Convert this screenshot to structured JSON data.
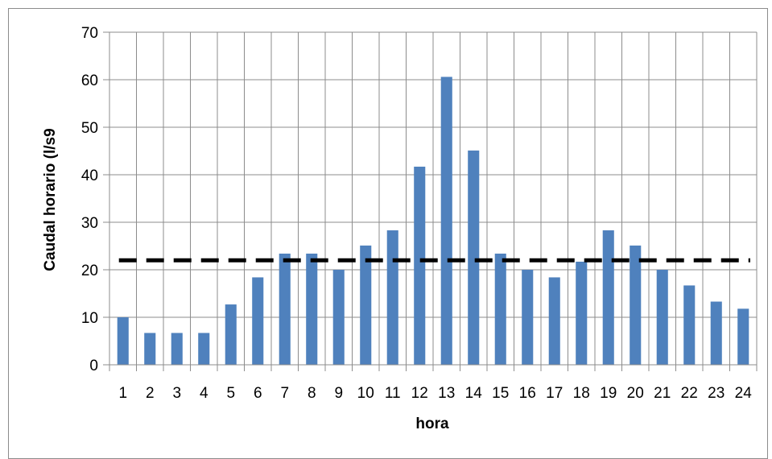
{
  "chart_data": {
    "type": "bar",
    "title": "",
    "xlabel": "hora",
    "ylabel": "Caudal horario (l/s9",
    "categories": [
      "1",
      "2",
      "3",
      "4",
      "5",
      "6",
      "7",
      "8",
      "9",
      "10",
      "11",
      "12",
      "13",
      "14",
      "15",
      "16",
      "17",
      "18",
      "19",
      "20",
      "21",
      "22",
      "23",
      "24"
    ],
    "series": [
      {
        "values": [
          10,
          6.7,
          6.7,
          6.7,
          12.7,
          18.4,
          23.4,
          23.4,
          20,
          25.1,
          28.3,
          41.7,
          60.6,
          45.1,
          23.4,
          20,
          18.4,
          21.7,
          28.3,
          25.1,
          20,
          16.7,
          13.3,
          11.8
        ],
        "color": "#4f81bd"
      }
    ],
    "reference_line": {
      "value": 22,
      "style": "dashed",
      "color": "#000000"
    },
    "ylim": [
      0,
      70
    ],
    "yticks": [
      0,
      10,
      20,
      30,
      40,
      50,
      60,
      70
    ],
    "grid": true,
    "legend": "none"
  }
}
